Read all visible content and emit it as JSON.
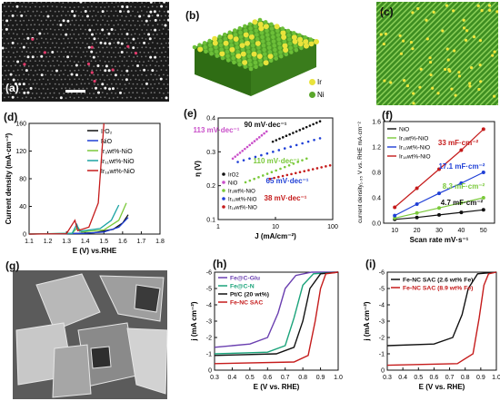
{
  "labels": {
    "a": "(a)",
    "b": "(b)",
    "c": "(c)",
    "d": "(d)",
    "e": "(e)",
    "f": "(f)",
    "g": "(g)",
    "h": "(h)",
    "i": "(i)"
  },
  "legend_b": {
    "ir": "Ir",
    "ni": "Ni"
  },
  "colors": {
    "ir_atom": "#e9e33b",
    "ni_atom": "#5aa62c",
    "bg_dark": "#1a1a1a"
  },
  "chart_data": [
    {
      "id": "d",
      "type": "line",
      "xlabel": "E (V) vs.RHE",
      "ylabel": "Current density (mA·cm⁻²)",
      "xlim": [
        1.1,
        1.8
      ],
      "ylim": [
        0,
        160
      ],
      "xticks": [
        "1.1",
        "1.2",
        "1.3",
        "1.4",
        "1.5",
        "1.6",
        "1.7",
        "1.8"
      ],
      "yticks": [
        "0",
        "40",
        "80",
        "120",
        "160"
      ],
      "series": [
        {
          "name": "IrO₂",
          "color": "#111111"
        },
        {
          "name": "NiO",
          "color": "#1f3fd6"
        },
        {
          "name": "Ir₃wt%-NiO",
          "color": "#7ac93a"
        },
        {
          "name": "Ir₁₁wt%-NiO",
          "color": "#1aa3a3"
        },
        {
          "name": "Ir₁₈wt%-NiO",
          "color": "#c51b1b"
        }
      ]
    },
    {
      "id": "e",
      "type": "line",
      "xlabel": "J (mA/cm⁻²)",
      "ylabel": "η (V)",
      "xlim": [
        1,
        100
      ],
      "ylim": [
        0.1,
        0.4
      ],
      "xscale": "log",
      "xticks": [
        "1",
        "10",
        "100"
      ],
      "yticks": [
        "0.1",
        "0.2",
        "0.3",
        "0.4"
      ],
      "annotations": [
        "113 mV·dec⁻¹",
        "90 mV·dec⁻¹",
        "110 mV·dec⁻¹",
        "65 mV·dec⁻¹",
        "38 mV·dec⁻¹"
      ],
      "series": [
        {
          "name": "IrO2",
          "color": "#111111"
        },
        {
          "name": "NiO",
          "color": "#c94fc9"
        },
        {
          "name": "Ir₃wt%-NiO",
          "color": "#7ac93a"
        },
        {
          "name": "Ir₁₁wt%-NiO",
          "color": "#1f3fd6"
        },
        {
          "name": "Ir₁₈wt%-NiO",
          "color": "#c51b1b"
        }
      ]
    },
    {
      "id": "f",
      "type": "line",
      "xlabel": "Scan rate mV·s⁻¹",
      "ylabel": "current density₁.₃₅ V vs. RHE mA·cm⁻²",
      "xlim": [
        5,
        55
      ],
      "ylim": [
        0,
        1.6
      ],
      "xticks": [
        "10",
        "20",
        "30",
        "40",
        "50"
      ],
      "yticks": [
        "0.0",
        "0.4",
        "0.8",
        "1.2",
        "1.6"
      ],
      "categories": [
        10,
        20,
        30,
        40,
        50
      ],
      "annotations": [
        "33 mF·cm⁻²",
        "17.1 mF·cm⁻²",
        "8.3 mF·cm⁻²",
        "4.7 mF·cm⁻²"
      ],
      "series": [
        {
          "name": "NiO",
          "color": "#111111",
          "values": [
            0.06,
            0.09,
            0.13,
            0.17,
            0.21
          ]
        },
        {
          "name": "Ir₃wt%-NiO",
          "color": "#7ac93a",
          "values": [
            0.08,
            0.16,
            0.24,
            0.32,
            0.4
          ]
        },
        {
          "name": "Ir₁₁wt%-NiO",
          "color": "#1f3fd6",
          "values": [
            0.12,
            0.3,
            0.47,
            0.63,
            0.8
          ]
        },
        {
          "name": "Ir₁₈wt%-NiO",
          "color": "#c51b1b",
          "values": [
            0.25,
            0.55,
            0.85,
            1.15,
            1.48
          ]
        }
      ]
    },
    {
      "id": "h",
      "type": "line",
      "xlabel": "E (V vs. RHE)",
      "ylabel": "j (mA cm⁻²)",
      "xlim": [
        0.3,
        1.0
      ],
      "ylim": [
        -6,
        0
      ],
      "xticks": [
        "0.3",
        "0.4",
        "0.5",
        "0.6",
        "0.7",
        "0.8",
        "0.9",
        "1.0"
      ],
      "yticks": [
        "0",
        "-1",
        "-2",
        "-3",
        "-4",
        "-5",
        "-6"
      ],
      "series": [
        {
          "name": "Fe@C-Glu",
          "color": "#6a3fb0"
        },
        {
          "name": "Fe@C-N",
          "color": "#1aa37a"
        },
        {
          "name": "Pt/C (20 wt%)",
          "color": "#111111"
        },
        {
          "name": "Fe-NC SAC",
          "color": "#c51b1b"
        }
      ]
    },
    {
      "id": "i",
      "type": "line",
      "xlabel": "E (V vs. RHE)",
      "ylabel": "j (mA cm⁻²)",
      "xlim": [
        0.3,
        1.0
      ],
      "ylim": [
        -6,
        0
      ],
      "xticks": [
        "0.3",
        "0.4",
        "0.5",
        "0.6",
        "0.7",
        "0.8",
        "0.9",
        "1.0"
      ],
      "yticks": [
        "0",
        "-1",
        "-2",
        "-3",
        "-4",
        "-5",
        "-6"
      ],
      "series": [
        {
          "name": "Fe-NC SAC (2.6 wt% Fe)",
          "color": "#111111"
        },
        {
          "name": "Fe-NC SAC (8.9 wt% Fe)",
          "color": "#c51b1b"
        }
      ]
    }
  ]
}
